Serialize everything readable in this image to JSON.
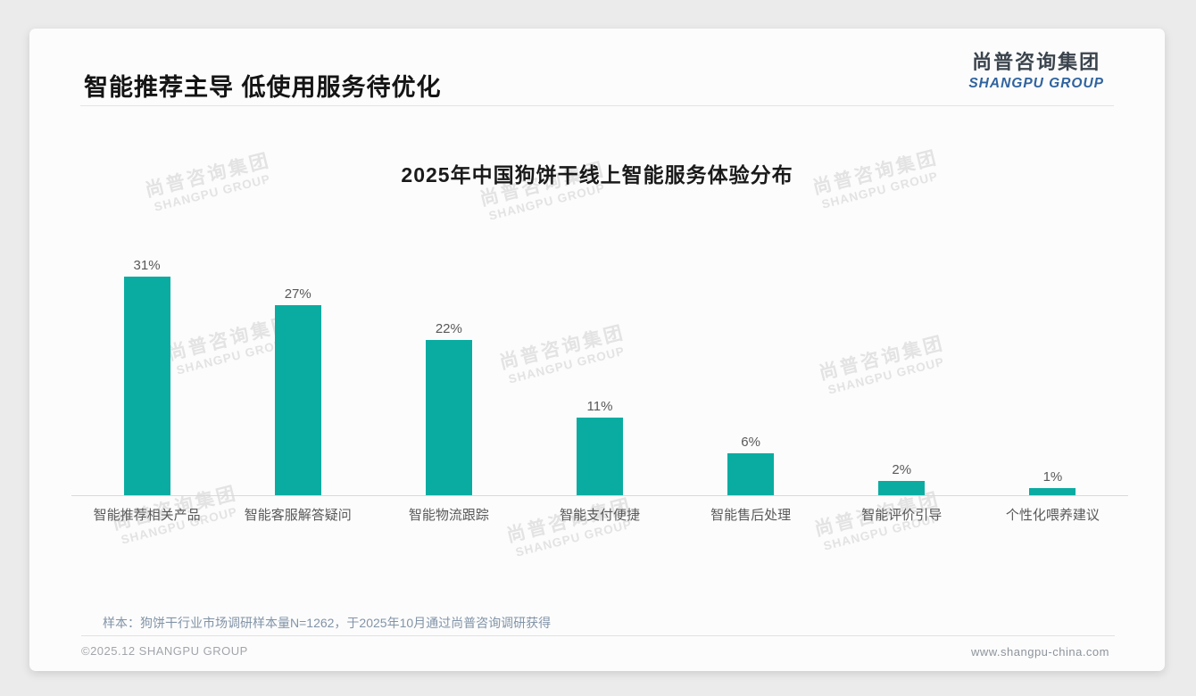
{
  "page": {
    "title": "智能推荐主导 低使用服务待优化",
    "logo": {
      "cn": "尚普咨询集团",
      "en": "SHANGPU GROUP"
    },
    "watermark": {
      "cn": "尚普咨询集团",
      "en": "SHANGPU GROUP"
    },
    "note": "样本：狗饼干行业市场调研样本量N=1262，于2025年10月通过尚普咨询调研获得",
    "footer": {
      "left": "©2025.12 SHANGPU GROUP",
      "right": "www.shangpu-china.com"
    }
  },
  "chart_data": {
    "type": "bar",
    "title": "2025年中国狗饼干线上智能服务体验分布",
    "categories": [
      "智能推荐相关产品",
      "智能客服解答疑问",
      "智能物流跟踪",
      "智能支付便捷",
      "智能售后处理",
      "智能评价引导",
      "个性化喂养建议"
    ],
    "values": [
      31,
      27,
      22,
      11,
      6,
      2,
      1
    ],
    "unit": "%",
    "bar_color": "#0aaca2",
    "label_color": "#595959",
    "ylim": [
      0,
      34
    ],
    "grid": false,
    "legend": "none",
    "data_labels": true
  }
}
